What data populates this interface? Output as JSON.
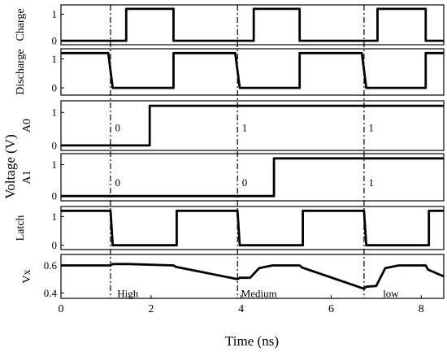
{
  "chart_data": {
    "type": "line",
    "title": "",
    "xlabel": "Time (ns)",
    "ylabel": "Voltage (V)",
    "xlim": [
      0,
      8.5
    ],
    "xticks": [
      "0",
      "2",
      "4",
      "6",
      "8"
    ],
    "xtick_values": [
      0,
      2,
      4,
      6,
      8
    ],
    "marker_times": [
      1.1,
      3.92,
      6.73
    ],
    "panels": [
      {
        "name": "Charge",
        "ylim": [
          -0.15,
          1.35
        ],
        "yticks": [
          "0",
          "1"
        ],
        "ytick_values": [
          0,
          1
        ],
        "series": [
          {
            "x": [
              0,
              1.45,
              1.45,
              2.5,
              2.5,
              4.28,
              4.28,
              5.3,
              5.3,
              7.03,
              7.03,
              8.1,
              8.1,
              8.5
            ],
            "y": [
              0,
              0,
              1.2,
              1.2,
              0,
              0,
              1.2,
              1.2,
              0,
              0,
              1.2,
              1.2,
              0,
              0
            ]
          }
        ],
        "labels": []
      },
      {
        "name": "Discharge",
        "ylim": [
          -0.25,
          1.35
        ],
        "yticks": [
          "0",
          "1"
        ],
        "ytick_values": [
          0,
          1
        ],
        "series": [
          {
            "x": [
              0,
              1.05,
              1.15,
              2.5,
              2.5,
              3.87,
              3.97,
              5.3,
              5.3,
              6.68,
              6.78,
              8.1,
              8.1,
              8.5
            ],
            "y": [
              1.2,
              1.2,
              0,
              0,
              1.2,
              1.2,
              0,
              0,
              1.2,
              1.2,
              0,
              0,
              1.2,
              1.2
            ]
          }
        ],
        "labels": []
      },
      {
        "name": "A0",
        "ylim": [
          -0.15,
          1.35
        ],
        "yticks": [
          "0",
          "1"
        ],
        "ytick_values": [
          0,
          1
        ],
        "series": [
          {
            "x": [
              0,
              1.97,
              1.97,
              8.5
            ],
            "y": [
              0,
              0,
              1.2,
              1.2
            ]
          }
        ],
        "labels": [
          {
            "text": "0",
            "x": 1.2,
            "y": 0.55
          },
          {
            "text": "1",
            "x": 4.02,
            "y": 0.55
          },
          {
            "text": "1",
            "x": 6.83,
            "y": 0.55
          }
        ]
      },
      {
        "name": "A1",
        "ylim": [
          -0.15,
          1.35
        ],
        "yticks": [
          "0",
          "1"
        ],
        "ytick_values": [
          0,
          1
        ],
        "series": [
          {
            "x": [
              0,
              4.73,
              4.73,
              8.5
            ],
            "y": [
              0,
              0,
              1.2,
              1.2
            ]
          }
        ],
        "labels": [
          {
            "text": "0",
            "x": 1.2,
            "y": 0.45
          },
          {
            "text": "0",
            "x": 4.02,
            "y": 0.45
          },
          {
            "text": "1",
            "x": 6.83,
            "y": 0.45
          }
        ]
      },
      {
        "name": "Latch",
        "ylim": [
          -0.15,
          1.35
        ],
        "yticks": [
          "0",
          "1"
        ],
        "ytick_values": [
          0,
          1
        ],
        "series": [
          {
            "x": [
              0,
              1.1,
              1.15,
              2.57,
              2.57,
              3.92,
              3.97,
              5.37,
              5.37,
              6.73,
              6.78,
              8.17,
              8.17,
              8.5
            ],
            "y": [
              1.2,
              1.2,
              0,
              0,
              1.2,
              1.2,
              0,
              0,
              1.2,
              1.2,
              0,
              0,
              1.2,
              1.2
            ]
          }
        ],
        "labels": []
      },
      {
        "name": "Vx",
        "ylim": [
          0.36,
          0.68
        ],
        "yticks": [
          "0.4",
          "0.6"
        ],
        "ytick_values": [
          0.4,
          0.6
        ],
        "series": [
          {
            "x": [
              0,
              1.1,
              1.15,
              1.5,
              2.5,
              2.55,
              3.92,
              3.97,
              4.2,
              4.4,
              4.7,
              5.3,
              5.35,
              6.73,
              6.78,
              7.0,
              7.2,
              7.5,
              8.1,
              8.15,
              8.5
            ],
            "y": [
              0.6,
              0.6,
              0.61,
              0.61,
              0.6,
              0.59,
              0.5,
              0.51,
              0.51,
              0.58,
              0.6,
              0.6,
              0.585,
              0.43,
              0.445,
              0.45,
              0.58,
              0.6,
              0.6,
              0.57,
              0.52
            ]
          }
        ],
        "labels": [
          {
            "text": "High",
            "x": 1.25,
            "y": 0.4
          },
          {
            "text": "Medium",
            "x": 4.0,
            "y": 0.4
          },
          {
            "text": "low",
            "x": 7.15,
            "y": 0.4
          }
        ]
      }
    ]
  }
}
